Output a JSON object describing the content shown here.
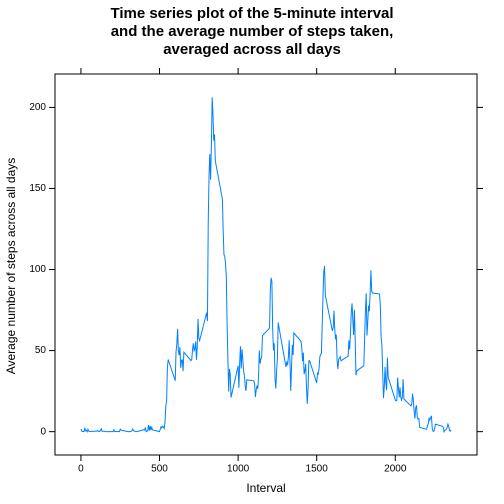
{
  "chart_data": {
    "type": "line",
    "title": [
      "Time series plot of the 5-minute interval",
      "and the average number of steps taken,",
      "averaged across all days"
    ],
    "xlabel": "Interval",
    "ylabel": "Average number of steps across all days",
    "color": "#0080ff",
    "xlim": [
      -165,
      2520
    ],
    "ylim": [
      -14.4,
      220.6
    ],
    "xticks": [
      0,
      500,
      1000,
      1500,
      2000
    ],
    "yticks": [
      0,
      50,
      100,
      150,
      200
    ],
    "x": [
      0,
      5,
      10,
      15,
      20,
      25,
      30,
      35,
      40,
      45,
      50,
      55,
      100,
      105,
      110,
      115,
      120,
      125,
      130,
      135,
      140,
      145,
      150,
      155,
      200,
      205,
      210,
      215,
      220,
      225,
      230,
      235,
      240,
      245,
      250,
      255,
      300,
      305,
      310,
      315,
      320,
      325,
      330,
      335,
      340,
      345,
      350,
      355,
      400,
      405,
      410,
      415,
      420,
      425,
      430,
      435,
      440,
      445,
      450,
      455,
      500,
      505,
      510,
      515,
      520,
      525,
      530,
      535,
      540,
      545,
      550,
      555,
      600,
      605,
      610,
      615,
      620,
      625,
      630,
      635,
      640,
      645,
      650,
      655,
      700,
      705,
      710,
      715,
      720,
      725,
      730,
      735,
      740,
      745,
      750,
      755,
      800,
      805,
      810,
      815,
      820,
      825,
      830,
      835,
      840,
      845,
      850,
      855,
      900,
      905,
      910,
      915,
      920,
      925,
      930,
      935,
      940,
      945,
      950,
      955,
      1000,
      1005,
      1010,
      1015,
      1020,
      1025,
      1030,
      1035,
      1040,
      1045,
      1050,
      1055,
      1100,
      1105,
      1110,
      1115,
      1120,
      1125,
      1130,
      1135,
      1140,
      1145,
      1150,
      1155,
      1200,
      1205,
      1210,
      1215,
      1220,
      1225,
      1230,
      1235,
      1240,
      1245,
      1250,
      1255,
      1300,
      1305,
      1310,
      1315,
      1320,
      1325,
      1330,
      1335,
      1340,
      1345,
      1350,
      1355,
      1400,
      1405,
      1410,
      1415,
      1420,
      1425,
      1430,
      1435,
      1440,
      1445,
      1450,
      1455,
      1500,
      1505,
      1510,
      1515,
      1520,
      1525,
      1530,
      1535,
      1540,
      1545,
      1550,
      1555,
      1600,
      1605,
      1610,
      1615,
      1620,
      1625,
      1630,
      1635,
      1640,
      1645,
      1650,
      1655,
      1700,
      1705,
      1710,
      1715,
      1720,
      1725,
      1730,
      1735,
      1740,
      1745,
      1750,
      1755,
      1800,
      1805,
      1810,
      1815,
      1820,
      1825,
      1830,
      1835,
      1840,
      1845,
      1850,
      1855,
      1900,
      1905,
      1910,
      1915,
      1920,
      1925,
      1930,
      1935,
      1940,
      1945,
      1950,
      1955,
      2000,
      2005,
      2010,
      2015,
      2020,
      2025,
      2030,
      2035,
      2040,
      2045,
      2050,
      2055,
      2100,
      2105,
      2110,
      2115,
      2120,
      2125,
      2130,
      2135,
      2140,
      2145,
      2150,
      2155,
      2200,
      2205,
      2210,
      2215,
      2220,
      2225,
      2230,
      2235,
      2240,
      2245,
      2250,
      2255,
      2300,
      2305,
      2310,
      2315,
      2320,
      2325,
      2330,
      2335,
      2340,
      2345,
      2350,
      2355
    ],
    "values": [
      1.72,
      0.34,
      0.13,
      0.15,
      0.08,
      2.09,
      0.53,
      0.87,
      0,
      1.47,
      0.3,
      0.13,
      0.32,
      0.68,
      0.15,
      0.34,
      0,
      1.11,
      1.83,
      0.17,
      0.17,
      0.38,
      0.26,
      0,
      0,
      0,
      1.13,
      0,
      0,
      0.13,
      0,
      0.23,
      0,
      0,
      1.55,
      0.94,
      0,
      0,
      0,
      0,
      0.21,
      0.62,
      1.62,
      0.58,
      0.49,
      0.08,
      0,
      0,
      1.19,
      0.94,
      2.57,
      0,
      0.34,
      0.36,
      4.11,
      0.66,
      3.49,
      0.83,
      3.11,
      1.11,
      0,
      1.57,
      3,
      2.25,
      3.32,
      2.96,
      2.09,
      6.06,
      16.02,
      18.34,
      39.45,
      44.49,
      31.49,
      49.26,
      53.77,
      63.45,
      49.96,
      47.08,
      52.15,
      39.34,
      44.02,
      44.17,
      37.36,
      49.04,
      43.81,
      44.38,
      50.51,
      54.51,
      49.92,
      50.98,
      55.68,
      44.32,
      52.26,
      69.55,
      57.85,
      56.15,
      73.38,
      68.21,
      129.43,
      157.53,
      171.15,
      155.4,
      177.3,
      206.17,
      195.92,
      179.57,
      183.4,
      167.02,
      143.45,
      124.04,
      109.11,
      108.11,
      103.72,
      95.97,
      66.21,
      45.23,
      24.79,
      38.75,
      34.98,
      21.06,
      40.57,
      26.98,
      42.42,
      52.66,
      38.92,
      50.79,
      44.28,
      37.42,
      34.7,
      28.34,
      25.09,
      31.94,
      31.36,
      29.68,
      21.32,
      25.55,
      28.38,
      26.47,
      33.43,
      49.98,
      42.04,
      44.6,
      46.04,
      59.19,
      63.87,
      87.7,
      94.85,
      92.77,
      63.4,
      50.17,
      54.47,
      32.42,
      26.53,
      37.74,
      45.06,
      67.28,
      42.34,
      39.89,
      43.26,
      40.98,
      46.25,
      56.43,
      42.75,
      25.13,
      39.96,
      53.55,
      47.32,
      60.81,
      55.75,
      51.96,
      43.58,
      48.7,
      35.47,
      37.55,
      41.85,
      27.51,
      17.11,
      26.08,
      43.62,
      43.77,
      30.02,
      36.08,
      35.49,
      38.85,
      45.96,
      47.75,
      48.13,
      65.32,
      82.91,
      98.66,
      102.11,
      83.96,
      62.13,
      64.13,
      74.55,
      63.17,
      56.91,
      59.77,
      43.87,
      38.57,
      44.66,
      45.45,
      46.21,
      43.68,
      46.62,
      56.3,
      50.72,
      61.23,
      73.38,
      79.13,
      68.94,
      59.66,
      75.09,
      56.51,
      34.77,
      37.45,
      40.68,
      58.02,
      74.7,
      85.32,
      59.26,
      67.77,
      77.7,
      74.25,
      85.34,
      99.45,
      86.58,
      85.6,
      84.87,
      77.83,
      58.04,
      53.36,
      36.32,
      20.72,
      27.4,
      40.02,
      30.21,
      25.55,
      45.66,
      33.53,
      19.62,
      19.02,
      19.34,
      33.34,
      26.81,
      21.17,
      27.3,
      21.34,
      19.55,
      21.32,
      32.3,
      20.15,
      15.94,
      17.23,
      23.45,
      19.25,
      12.45,
      8.02,
      14.66,
      16.3,
      8.68,
      7.79,
      8.13,
      2.62,
      1.45,
      3.68,
      4.81,
      8.51,
      7.08,
      8.7,
      9.75,
      2.21,
      0.32,
      0.11,
      1.6,
      4.6,
      3.3,
      2.85,
      0,
      0.83,
      0.96,
      1.58,
      2.6,
      4.7,
      3.3,
      0.64,
      0.23,
      1.08
    ]
  }
}
